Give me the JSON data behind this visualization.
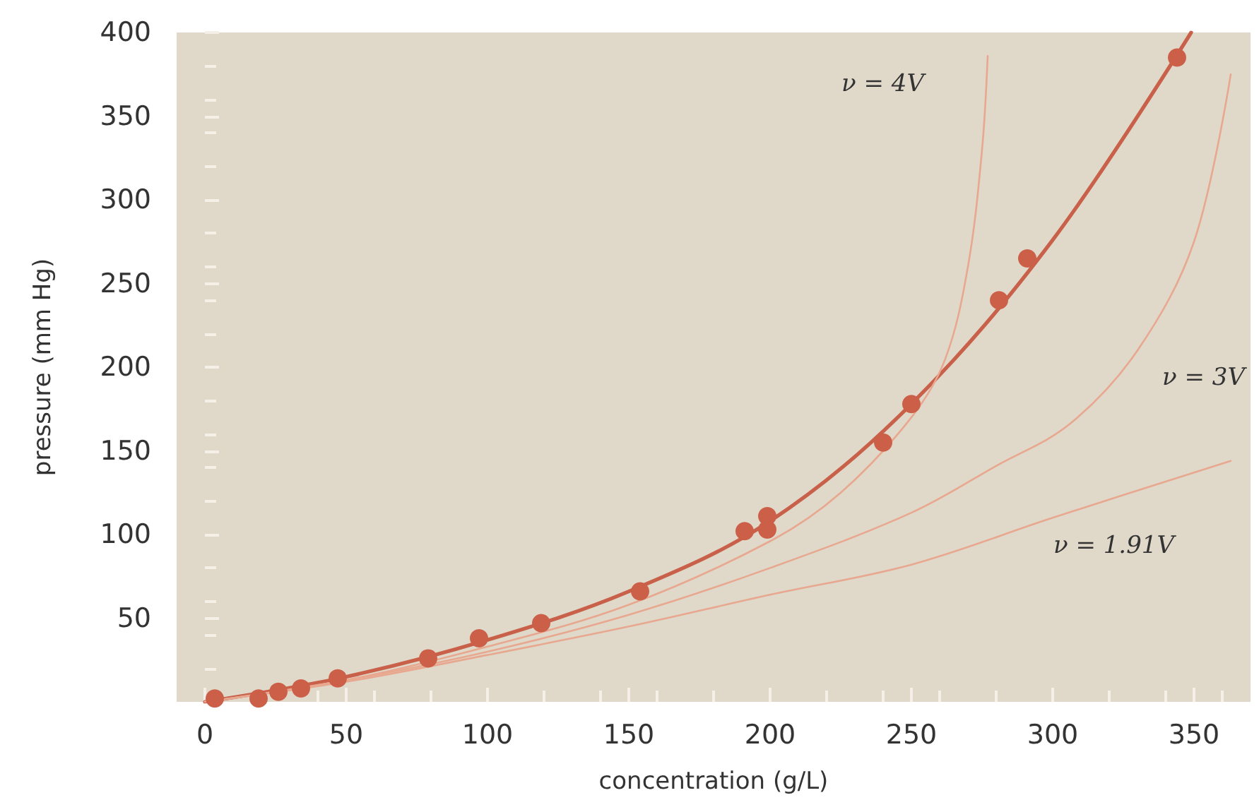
{
  "chart_data": {
    "type": "line",
    "xlabel": "concentration (g/L)",
    "ylabel": "pressure (mm Hg)",
    "xlim": [
      -10,
      370
    ],
    "ylim": [
      0,
      400
    ],
    "xticks": [
      0,
      50,
      100,
      150,
      200,
      250,
      300,
      350
    ],
    "yticks": [
      {
        "value": 0,
        "label": null
      },
      50,
      100,
      150,
      200,
      250,
      300,
      350,
      400
    ],
    "grid": false,
    "line_style": "solid",
    "series": [
      {
        "type": "scatter",
        "marker": "circle",
        "color": "#cc5f48",
        "x": [
          3.5,
          19,
          26,
          34,
          47,
          79,
          97,
          119,
          154,
          191,
          199,
          199,
          240,
          250,
          281,
          291,
          344
        ],
        "values": [
          2,
          2,
          6,
          8,
          14,
          26,
          38,
          47,
          66,
          102,
          111,
          103,
          155,
          178,
          240,
          265,
          385
        ]
      },
      {
        "marker": "none",
        "color": "#c8604a",
        "x": [
          0,
          50,
          100,
          150,
          200,
          250,
          300,
          349
        ],
        "values": [
          0,
          15,
          37,
          66,
          108,
          178,
          276,
          400
        ]
      },
      {
        "name": "ν = 4V",
        "marker": "none",
        "color": "#e8a890",
        "x": [
          0,
          50,
          100,
          150,
          200,
          225,
          250,
          262,
          270,
          275,
          277
        ],
        "values": [
          0,
          13,
          33,
          58,
          96,
          125,
          170,
          205,
          260,
          330,
          386
        ]
      },
      {
        "name": "ν = 3V",
        "marker": "none",
        "color": "#e8a890",
        "x": [
          0,
          50,
          100,
          150,
          200,
          250,
          280,
          306,
          330,
          350,
          363
        ],
        "values": [
          0,
          13,
          30,
          52,
          80,
          113,
          141,
          166,
          210,
          275,
          375
        ]
      },
      {
        "name": "ν = 1.91V",
        "marker": "none",
        "color": "#e8a890",
        "x": [
          0,
          50,
          100,
          150,
          200,
          250,
          300,
          363
        ],
        "values": [
          0,
          12,
          28,
          45,
          64,
          82,
          110,
          144
        ]
      }
    ]
  }
}
